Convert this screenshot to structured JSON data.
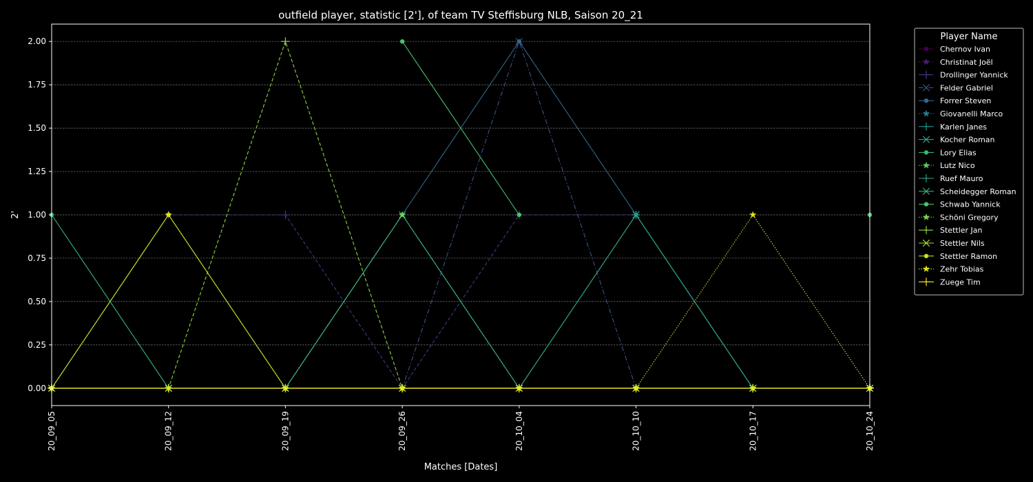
{
  "chart_data": {
    "type": "line",
    "title": "outfield player, statistic [2'], of team TV Steffisburg NLB, Saison 20_21",
    "xlabel": "Matches [Dates]",
    "ylabel": "2'",
    "categories": [
      "20_09_05",
      "20_09_12",
      "20_09_19",
      "20_09_26",
      "20_10_04",
      "20_10_10",
      "20_10_17",
      "20_10_24"
    ],
    "ylim": [
      -0.1,
      2.1
    ],
    "yticks": [
      "0.00",
      "0.25",
      "0.50",
      "0.75",
      "1.00",
      "1.25",
      "1.50",
      "1.75",
      "2.00"
    ],
    "grid": true,
    "legend": {
      "title": "Player Name",
      "placement": "outside-right"
    },
    "series": [
      {
        "name": "Chernov Ivan",
        "color": "#440154",
        "marker": "o",
        "dash": "solid",
        "values": [
          0,
          0,
          0,
          0,
          0,
          0,
          0,
          0
        ]
      },
      {
        "name": "Christinat Joël",
        "color": "#481f70",
        "marker": "*",
        "dash": "dotted",
        "values": [
          0,
          0,
          0,
          0,
          0,
          0,
          0,
          0
        ]
      },
      {
        "name": "Drollinger Yannick",
        "color": "#443983",
        "marker": "+",
        "dash": "dashed",
        "values": [
          0,
          1,
          1,
          0,
          1,
          1,
          0,
          0
        ]
      },
      {
        "name": "Felder Gabriel",
        "color": "#3b528b",
        "marker": "x",
        "dash": "dashdot",
        "values": [
          0,
          0,
          0,
          0,
          2,
          0,
          0,
          0
        ]
      },
      {
        "name": "Forrer Steven",
        "color": "#31688e",
        "marker": "o",
        "dash": "solid",
        "values": [
          0,
          0,
          0,
          1,
          2,
          1,
          0,
          0
        ]
      },
      {
        "name": "Giovanelli Marco",
        "color": "#287c8e",
        "marker": "*",
        "dash": "dotted",
        "values": [
          0,
          0,
          0,
          0,
          0,
          0,
          0,
          0
        ]
      },
      {
        "name": "Karlen Janes",
        "color": "#21918c",
        "marker": "+",
        "dash": "solid",
        "values": [
          0,
          0,
          0,
          0,
          0,
          0,
          0,
          0
        ]
      },
      {
        "name": "Kocher Roman",
        "color": "#20a486",
        "marker": "x",
        "dash": "solid",
        "values": [
          0,
          0,
          0,
          1,
          0,
          1,
          0,
          0
        ]
      },
      {
        "name": "Lory Elias",
        "color": "#35b779",
        "marker": "o",
        "dash": "solid",
        "values": [
          1,
          0,
          0,
          0,
          0,
          0,
          0,
          0
        ]
      },
      {
        "name": "Lutz Nico",
        "color": "#5ec962",
        "marker": "*",
        "dash": "dotted",
        "values": [
          0,
          0,
          0,
          0,
          0,
          0,
          0,
          0
        ]
      },
      {
        "name": "Ruef Mauro",
        "color": "#2e9e87",
        "marker": "+",
        "dash": "solid",
        "values": [
          0,
          0,
          0,
          0,
          0,
          1,
          0,
          0
        ]
      },
      {
        "name": "Scheidegger Roman",
        "color": "#3aae7c",
        "marker": "x",
        "dash": "solid",
        "values": [
          0,
          0,
          0,
          0,
          0,
          0,
          0,
          0
        ]
      },
      {
        "name": "Schwab Yannick",
        "color": "#4cc26c",
        "marker": "o",
        "dash": "solid",
        "values": [
          null,
          null,
          null,
          2,
          1,
          null,
          null,
          1
        ]
      },
      {
        "name": "Schöni Gregory",
        "color": "#7ad151",
        "marker": "*",
        "dash": "dotted",
        "values": [
          0,
          0,
          0,
          1,
          0,
          0,
          0,
          0
        ]
      },
      {
        "name": "Stettler Jan",
        "color": "#90d743",
        "marker": "+",
        "dash": "dashed",
        "values": [
          0,
          0,
          2,
          0,
          0,
          0,
          0,
          0
        ]
      },
      {
        "name": "Stettler Nils",
        "color": "#a8db34",
        "marker": "x",
        "dash": "solid",
        "values": [
          0,
          0,
          0,
          0,
          0,
          0,
          0,
          0
        ]
      },
      {
        "name": "Stettler Ramon",
        "color": "#c2df23",
        "marker": "o",
        "dash": "solid",
        "values": [
          0,
          1,
          0,
          0,
          0,
          0,
          0,
          0
        ]
      },
      {
        "name": "Zehr Tobias",
        "color": "#dde318",
        "marker": "*",
        "dash": "dotted",
        "values": [
          0,
          1,
          0,
          0,
          0,
          0,
          1,
          0
        ]
      },
      {
        "name": "Zuege Tim",
        "color": "#fde725",
        "marker": "+",
        "dash": "solid",
        "values": [
          0,
          0,
          0,
          0,
          0,
          0,
          0,
          0
        ]
      }
    ]
  }
}
